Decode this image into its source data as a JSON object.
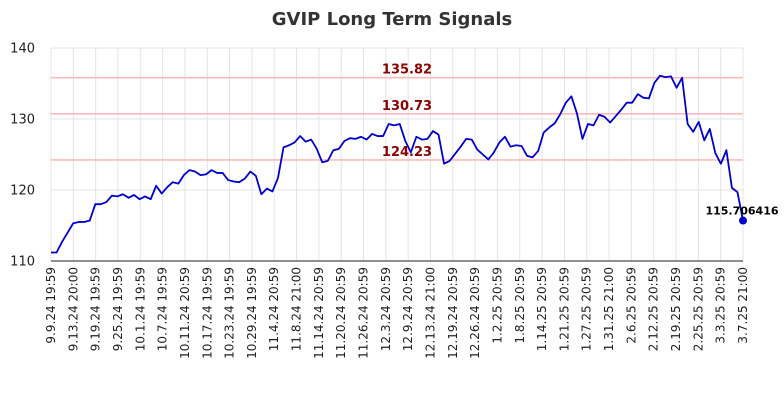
{
  "chart_data": {
    "type": "line",
    "title": "GVIP Long Term Signals",
    "xlabel": "",
    "ylabel": "",
    "ylim": [
      110,
      140
    ],
    "yticks": [
      110,
      120,
      130,
      140
    ],
    "grid": true,
    "line_color": "#0000cc",
    "ref_line_color": "#ffbbbb",
    "ref_label_color": "#8b0000",
    "x_tick_labels": [
      "9.9.24 19:59",
      "9.13.24 20:00",
      "9.19.24 19:59",
      "9.25.24 19:59",
      "10.1.24 19:59",
      "10.7.24 19:59",
      "10.11.24 20:59",
      "10.17.24 19:59",
      "10.23.24 19:59",
      "10.29.24 19:59",
      "11.4.24 20:59",
      "11.8.24 21:00",
      "11.14.24 20:59",
      "11.20.24 20:59",
      "11.26.24 20:59",
      "12.3.24 20:59",
      "12.9.24 20:59",
      "12.13.24 21:00",
      "12.19.24 20:59",
      "12.26.24 20:59",
      "1.2.25 20:59",
      "1.8.25 20:59",
      "1.14.25 20:59",
      "1.21.25 20:59",
      "1.27.25 20:59",
      "1.31.25 21:00",
      "2.6.25 20:59",
      "2.12.25 20:59",
      "2.19.25 20:59",
      "2.25.25 20:59",
      "3.3.25 20:59",
      "3.7.25 21:00"
    ],
    "reference_lines": [
      {
        "value": 135.82,
        "label": "135.82"
      },
      {
        "value": 130.73,
        "label": "130.73"
      },
      {
        "value": 124.23,
        "label": "124.23"
      }
    ],
    "last_point_label": "115.706416",
    "series": [
      {
        "values": [
          111.2,
          111.2,
          112.7,
          114.0,
          115.3,
          115.5,
          115.5,
          115.7,
          118.0,
          118.0,
          118.3,
          119.2,
          119.1,
          119.4,
          118.9,
          119.3,
          118.7,
          119.1,
          118.7,
          120.6,
          119.5,
          120.4,
          121.1,
          120.9,
          122.1,
          122.8,
          122.6,
          122.1,
          122.2,
          122.8,
          122.4,
          122.4,
          121.4,
          121.2,
          121.1,
          121.6,
          122.6,
          122.0,
          119.4,
          120.2,
          119.8,
          121.7,
          126.0,
          126.3,
          126.7,
          127.6,
          126.8,
          127.1,
          125.8,
          123.9,
          124.1,
          125.6,
          125.8,
          126.9,
          127.3,
          127.2,
          127.5,
          127.1,
          127.9,
          127.6,
          127.6,
          129.3,
          129.1,
          129.3,
          126.9,
          125.3,
          127.5,
          127.1,
          127.2,
          128.3,
          127.8,
          123.7,
          124.1,
          125.1,
          126.1,
          127.2,
          127.1,
          125.7,
          125.0,
          124.3,
          125.3,
          126.7,
          127.5,
          126.1,
          126.3,
          126.2,
          124.8,
          124.6,
          125.5,
          128.1,
          128.8,
          129.4,
          130.7,
          132.3,
          133.2,
          130.8,
          127.2,
          129.3,
          129.1,
          130.6,
          130.3,
          129.5,
          130.4,
          131.3,
          132.3,
          132.3,
          133.5,
          133.0,
          132.9,
          135.1,
          136.1,
          135.9,
          136.0,
          134.4,
          135.8,
          129.3,
          128.2,
          129.6,
          127.0,
          128.6,
          125.2,
          123.7,
          125.6,
          120.3,
          119.7,
          115.7
        ]
      }
    ]
  }
}
